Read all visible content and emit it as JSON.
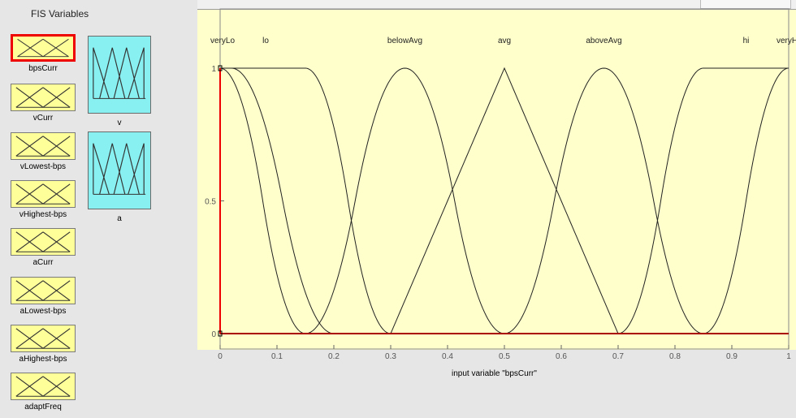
{
  "panel": {
    "title": "FIS Variables",
    "inputs": [
      {
        "label": "bpsCurr",
        "selected": true
      },
      {
        "label": "vCurr"
      },
      {
        "label": "vLowest-bps"
      },
      {
        "label": "vHighest-bps"
      },
      {
        "label": "aCurr"
      },
      {
        "label": "aLowest-bps"
      },
      {
        "label": "aHighest-bps"
      },
      {
        "label": "adaptFreq"
      }
    ],
    "outputs": [
      {
        "label": "v"
      },
      {
        "label": "a"
      }
    ]
  },
  "colors": {
    "input_block": "#ffff99",
    "output_block": "#88f0f0",
    "plot_bg": "#ffffcc",
    "selected": "#e00000"
  },
  "plot": {
    "xlabel": "input variable \"bpsCurr\"",
    "mf_labels": [
      "veryLo",
      "lo",
      "belowAvg",
      "avg",
      "aboveAvg",
      "hi",
      "veryHi"
    ],
    "xlim": [
      0,
      1
    ],
    "ylim": [
      0,
      1
    ],
    "xticks": [
      "0",
      "0.1",
      "0.2",
      "0.3",
      "0.4",
      "0.5",
      "0.6",
      "0.7",
      "0.8",
      "0.9",
      "1"
    ],
    "yticks": [
      "0",
      "0.5",
      "1"
    ]
  },
  "chart_data": {
    "type": "line",
    "xlabel": "input variable \"bpsCurr\"",
    "xlim": [
      0,
      1
    ],
    "ylim": [
      0,
      1
    ],
    "series": [
      {
        "name": "veryLo",
        "x": [
          0,
          0.0,
          0.1,
          0.15
        ],
        "y": [
          1,
          1,
          0.5,
          0
        ]
      },
      {
        "name": "lo",
        "x": [
          0,
          0.15,
          0.3
        ],
        "y": [
          1,
          0,
          0
        ]
      },
      {
        "name": "belowAvg",
        "x": [
          0.15,
          0.325,
          0.5
        ],
        "y": [
          0,
          1,
          0
        ]
      },
      {
        "name": "avg",
        "x": [
          0.3,
          0.5,
          0.7
        ],
        "y": [
          0,
          1,
          0
        ]
      },
      {
        "name": "aboveAvg",
        "x": [
          0.5,
          0.675,
          0.85
        ],
        "y": [
          0,
          1,
          0
        ]
      },
      {
        "name": "hi",
        "x": [
          0.7,
          0.85,
          1
        ],
        "y": [
          0,
          0,
          1
        ]
      },
      {
        "name": "veryHi",
        "x": [
          0.85,
          0.9,
          1,
          1
        ],
        "y": [
          0,
          0.5,
          1,
          1
        ]
      }
    ]
  }
}
